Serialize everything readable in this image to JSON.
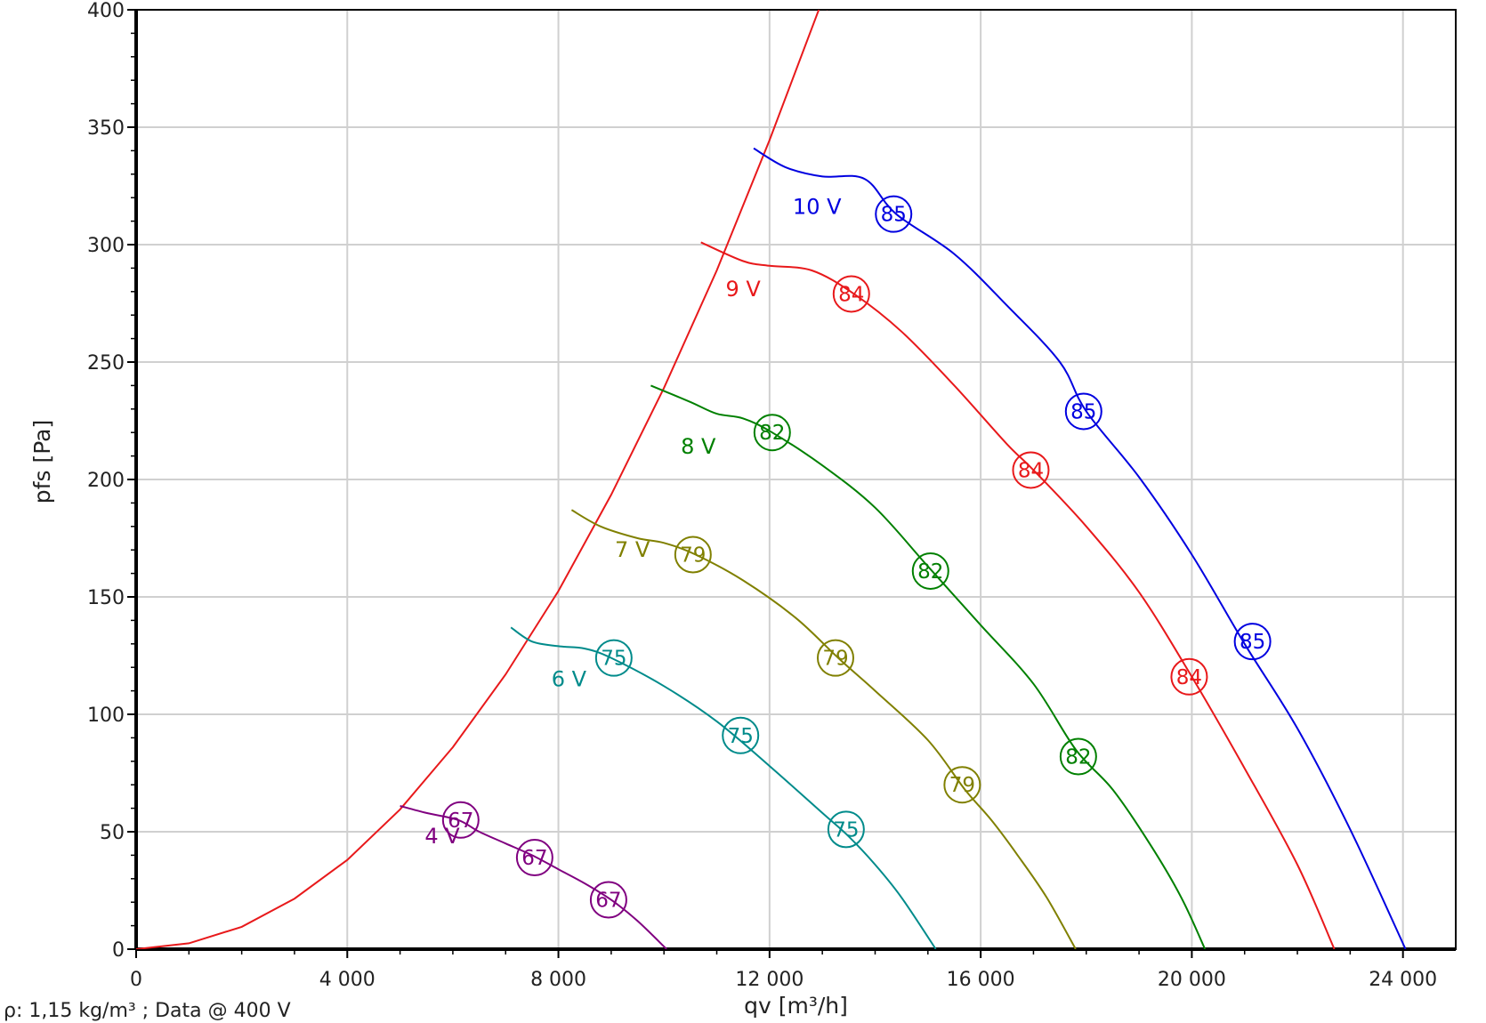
{
  "chart_data": {
    "type": "line",
    "xlabel": "qv [m³/h]",
    "ylabel": "pfs [Pa]",
    "footnote": "ρ: 1,15 kg/m³ ; Data @ 400 V",
    "xlim": [
      0,
      25000
    ],
    "ylim": [
      0,
      400
    ],
    "grid": true,
    "x_ticks": [
      {
        "value": 0,
        "label": "0"
      },
      {
        "value": 4000,
        "label": "4 000"
      },
      {
        "value": 8000,
        "label": "8 000"
      },
      {
        "value": 12000,
        "label": "12 000"
      },
      {
        "value": 16000,
        "label": "16 000"
      },
      {
        "value": 20000,
        "label": "20 000"
      },
      {
        "value": 24000,
        "label": "24 000"
      }
    ],
    "y_ticks": [
      {
        "value": 0,
        "label": "0"
      },
      {
        "value": 50,
        "label": "50"
      },
      {
        "value": 100,
        "label": "100"
      },
      {
        "value": 150,
        "label": "150"
      },
      {
        "value": 200,
        "label": "200"
      },
      {
        "value": 250,
        "label": "250"
      },
      {
        "value": 300,
        "label": "300"
      },
      {
        "value": 350,
        "label": "350"
      },
      {
        "value": 400,
        "label": "400"
      }
    ],
    "system_curve": {
      "color": "#e8191b",
      "x": [
        0,
        1000,
        2000,
        3000,
        4000,
        5000,
        6000,
        7000,
        8000,
        9000,
        10000,
        11000,
        12000,
        13000,
        13100
      ],
      "y": [
        0,
        2.5,
        9.5,
        21.5,
        38,
        59.5,
        86,
        117,
        152.5,
        193.5,
        239,
        289,
        344.5,
        404,
        400
      ]
    },
    "series": [
      {
        "name": "4 V",
        "color": "#800080",
        "label_at": [
          5800,
          45
        ],
        "x": [
          5000,
          5500,
          6100,
          6500,
          7000,
          7500,
          8000,
          8500,
          9000,
          9500,
          10050
        ],
        "y": [
          61,
          58,
          55,
          50,
          45,
          40,
          34,
          28,
          21,
          12,
          0
        ],
        "markers": [
          {
            "x": 6150,
            "y": 55,
            "label": "67"
          },
          {
            "x": 7550,
            "y": 39,
            "label": "67"
          },
          {
            "x": 8950,
            "y": 21,
            "label": "67"
          }
        ]
      },
      {
        "name": "6 V",
        "color": "#008b8b",
        "label_at": [
          8200,
          112
        ],
        "x": [
          7100,
          7500,
          8000,
          8500,
          9000,
          10000,
          11000,
          12000,
          13000,
          13500,
          14000,
          14500,
          15150
        ],
        "y": [
          137,
          131,
          129,
          128,
          124,
          112,
          97,
          78,
          58,
          48,
          36,
          22,
          0
        ],
        "markers": [
          {
            "x": 9050,
            "y": 124,
            "label": "75"
          },
          {
            "x": 11450,
            "y": 91,
            "label": "75"
          },
          {
            "x": 13450,
            "y": 51,
            "label": "75"
          }
        ]
      },
      {
        "name": "7 V",
        "color": "#808000",
        "label_at": [
          9400,
          167
        ],
        "x": [
          8250,
          8800,
          9500,
          10000,
          10600,
          11500,
          12500,
          13300,
          14000,
          15000,
          15700,
          16200,
          16700,
          17250,
          17800
        ],
        "y": [
          187,
          180,
          175,
          173,
          168,
          157,
          141,
          124,
          110,
          89,
          68,
          55,
          40,
          22,
          0
        ],
        "markers": [
          {
            "x": 10550,
            "y": 168,
            "label": "79"
          },
          {
            "x": 13250,
            "y": 124,
            "label": "79"
          },
          {
            "x": 15650,
            "y": 70,
            "label": "79"
          }
        ]
      },
      {
        "name": "8 V",
        "color": "#008000",
        "label_at": [
          10650,
          211
        ],
        "x": [
          9750,
          10500,
          11000,
          11500,
          12050,
          13000,
          14000,
          15000,
          16000,
          17000,
          17800,
          18500,
          19200,
          19800,
          20250
        ],
        "y": [
          240,
          233,
          228,
          226,
          220,
          206,
          188,
          163,
          138,
          113,
          85,
          68,
          45,
          22,
          0
        ],
        "markers": [
          {
            "x": 12050,
            "y": 220,
            "label": "82"
          },
          {
            "x": 15050,
            "y": 161,
            "label": "82"
          },
          {
            "x": 17850,
            "y": 82,
            "label": "82"
          }
        ]
      },
      {
        "name": "9 V",
        "color": "#e8191b",
        "label_at": [
          11500,
          278
        ],
        "x": [
          10700,
          11500,
          12000,
          12800,
          13600,
          14500,
          15500,
          16500,
          17000,
          18000,
          19000,
          20000,
          21000,
          22000,
          22700
        ],
        "y": [
          301,
          293,
          291,
          289,
          279,
          263,
          240,
          215,
          204,
          180,
          152,
          116,
          77,
          36,
          0
        ],
        "markers": [
          {
            "x": 13550,
            "y": 279,
            "label": "84"
          },
          {
            "x": 16950,
            "y": 204,
            "label": "84"
          },
          {
            "x": 19950,
            "y": 116,
            "label": "84"
          }
        ]
      },
      {
        "name": "10 V",
        "color": "#0000e0",
        "label_at": [
          12900,
          313
        ],
        "x": [
          11700,
          12300,
          13000,
          13800,
          14400,
          15500,
          16500,
          17500,
          18000,
          19000,
          20000,
          21000,
          22000,
          23000,
          24050
        ],
        "y": [
          341,
          333,
          329,
          328,
          313,
          296,
          274,
          250,
          229,
          201,
          168,
          130,
          94,
          51,
          0
        ],
        "markers": [
          {
            "x": 14350,
            "y": 313,
            "label": "85"
          },
          {
            "x": 17950,
            "y": 229,
            "label": "85"
          },
          {
            "x": 21150,
            "y": 131,
            "label": "85"
          }
        ]
      }
    ]
  }
}
